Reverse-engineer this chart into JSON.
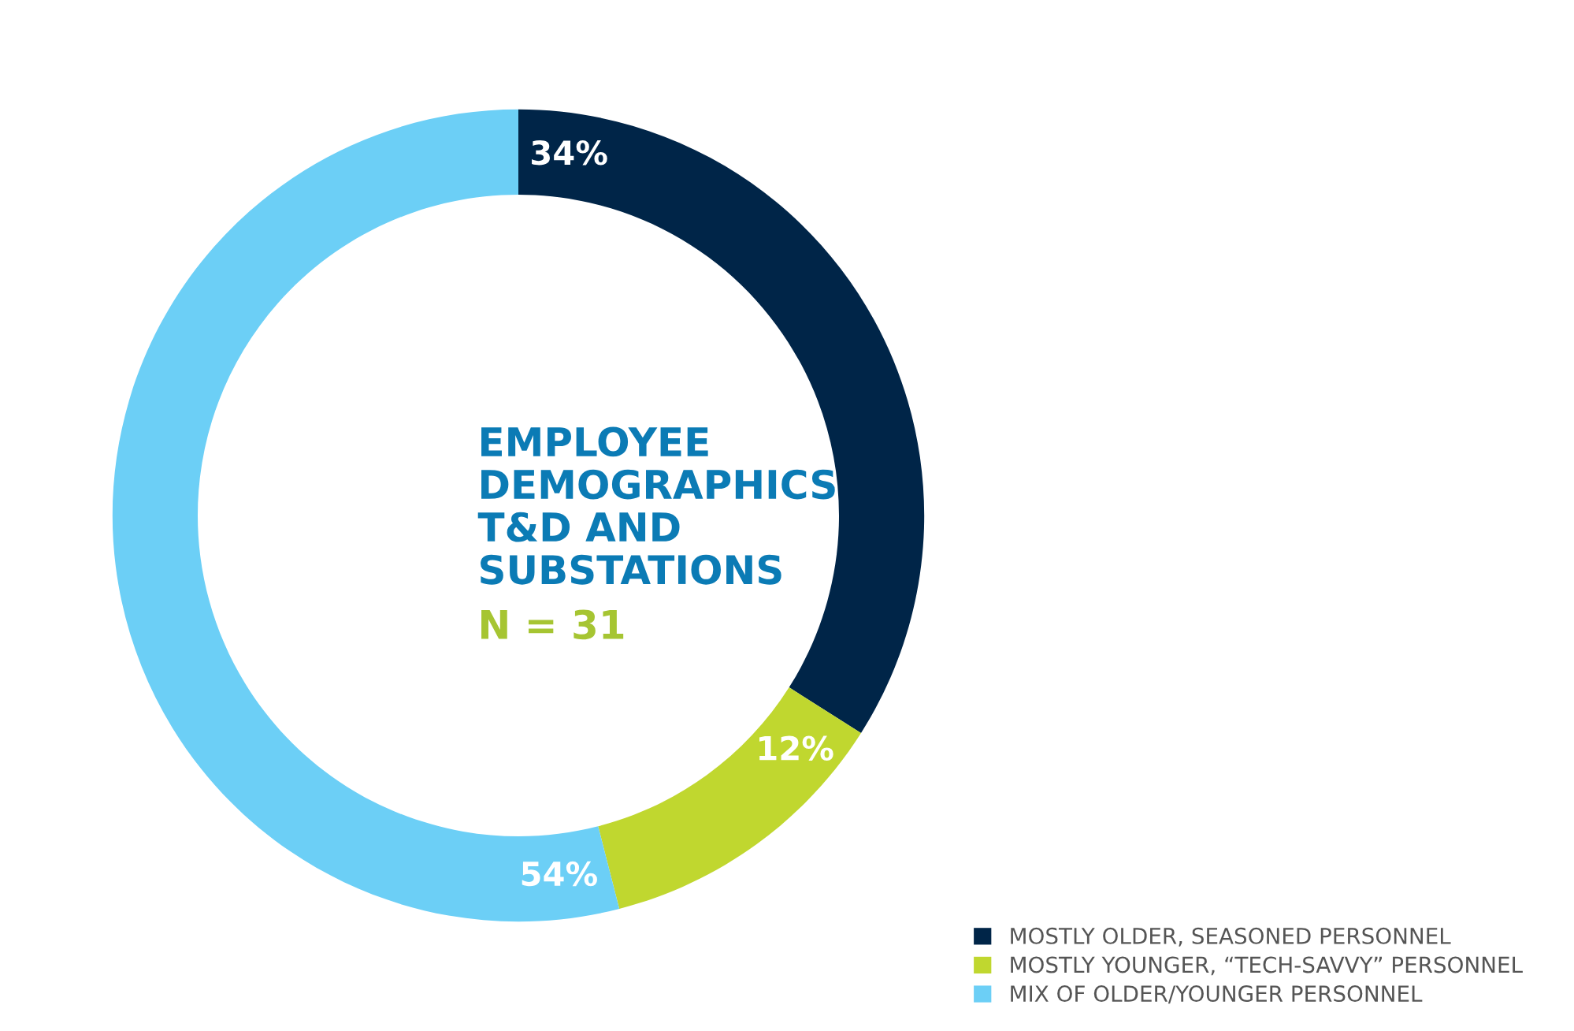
{
  "chart_data": {
    "type": "donut",
    "title": "EMPLOYEE\nDEMOGRAPHICS\nT&D AND\nSUBSTATIONS",
    "subtitle": "N = 31",
    "categories": [
      "MOSTLY OLDER, SEASONED PERSONNEL",
      "MOSTLY YOUNGER, “TECH-SAVVY” PERSONNEL",
      "MIX OF OLDER/YOUNGER PERSONNEL"
    ],
    "values": [
      34,
      12,
      54
    ],
    "colors": [
      "#002548",
      "#c0d72f",
      "#6ccff6"
    ],
    "value_labels": [
      "34%",
      "12%",
      "54%"
    ],
    "legend": "bottom right"
  }
}
